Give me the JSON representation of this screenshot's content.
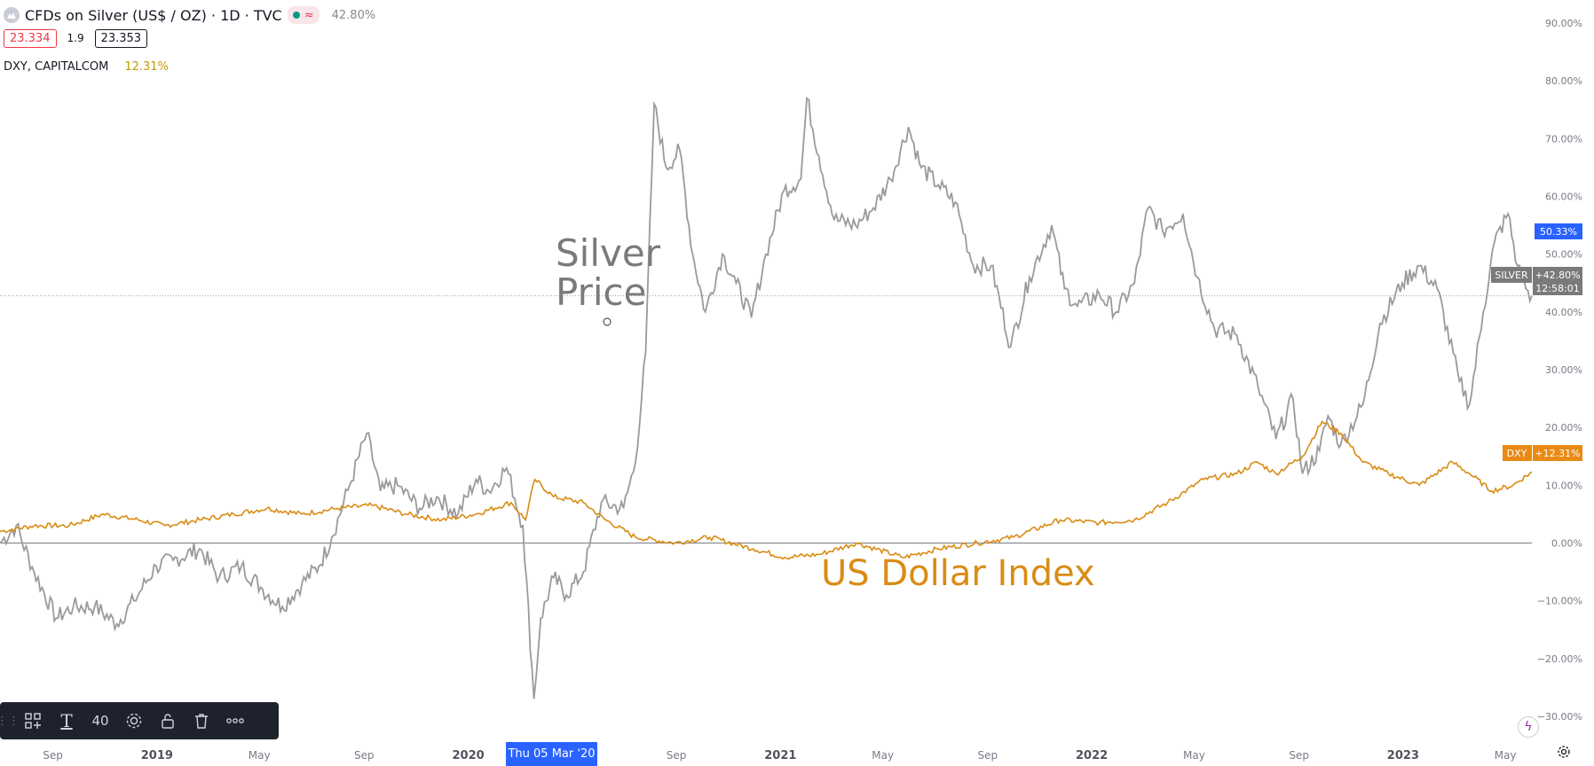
{
  "legend": {
    "symbol_title": "CFDs on Silver (US$ / OZ) · 1D · TVC",
    "status_icon": "wave-icon",
    "status_glyph": "≈",
    "change": "42.80%",
    "bid": "23.334",
    "spread": "1.9",
    "ask": "23.353",
    "compare_symbol": "DXY, CAPITALCOM",
    "compare_change": "12.31%"
  },
  "colors": {
    "silver": "#9a9a9a",
    "dxy": "#d98c14",
    "annot_silver": "#7a7a7a",
    "annot_dxy": "#d98c14",
    "badge_blue": "#2962ff",
    "badge_gray": "#7a7a7a",
    "badge_orange": "#e98a14"
  },
  "annotations": {
    "silver_line1": "Silver",
    "silver_line2": "Price",
    "dxy": "US Dollar Index"
  },
  "toolbar": {
    "font_size": "40"
  },
  "crosshair_date": "Thu 05 Mar '20",
  "badges": {
    "blue": "50.33%",
    "silver_name": "SILVER",
    "silver_value": "+42.80%",
    "silver_countdown": "12:58:01",
    "dxy_name": "DXY",
    "dxy_value": "+12.31%"
  },
  "chart_data": {
    "type": "line",
    "y_axis": {
      "unit": "percent",
      "ticks": [
        90,
        80,
        70,
        60,
        50,
        40,
        30,
        20,
        10,
        0,
        -10,
        -20,
        -30
      ],
      "tick_labels": [
        "90.00%",
        "80.00%",
        "70.00%",
        "60.00%",
        "50.00%",
        "40.00%",
        "30.00%",
        "20.00%",
        "10.00%",
        "0.00%",
        "−10.00%",
        "−20.00%",
        "−30.00%"
      ],
      "range": [
        -34,
        94
      ]
    },
    "x_axis": {
      "range": [
        "2018-07-01",
        "2023-06-01"
      ],
      "ticks": [
        {
          "date": "2018-09-01",
          "label": "Sep"
        },
        {
          "date": "2019-01-01",
          "label": "2019"
        },
        {
          "date": "2019-05-01",
          "label": "May"
        },
        {
          "date": "2019-09-01",
          "label": "Sep"
        },
        {
          "date": "2020-01-01",
          "label": "2020"
        },
        {
          "date": "2020-05-01",
          "label": "May"
        },
        {
          "date": "2020-09-01",
          "label": "Sep"
        },
        {
          "date": "2021-01-01",
          "label": "2021"
        },
        {
          "date": "2021-05-01",
          "label": "May"
        },
        {
          "date": "2021-09-01",
          "label": "Sep"
        },
        {
          "date": "2022-01-01",
          "label": "2022"
        },
        {
          "date": "2022-05-01",
          "label": "May"
        },
        {
          "date": "2022-09-01",
          "label": "Sep"
        },
        {
          "date": "2023-01-01",
          "label": "2023"
        },
        {
          "date": "2023-05-01",
          "label": "May"
        }
      ]
    },
    "series": [
      {
        "name": "SILVER",
        "points": [
          [
            "2018-07-01",
            0
          ],
          [
            "2018-07-20",
            3
          ],
          [
            "2018-08-10",
            -5
          ],
          [
            "2018-09-05",
            -13
          ],
          [
            "2018-09-25",
            -11
          ],
          [
            "2018-10-20",
            -11
          ],
          [
            "2018-11-15",
            -14
          ],
          [
            "2018-12-05",
            -10
          ],
          [
            "2018-12-31",
            -4
          ],
          [
            "2019-01-20",
            -3
          ],
          [
            "2019-02-20",
            -1
          ],
          [
            "2019-03-15",
            -6
          ],
          [
            "2019-04-10",
            -4
          ],
          [
            "2019-05-05",
            -8
          ],
          [
            "2019-05-28",
            -11
          ],
          [
            "2019-06-20",
            -7
          ],
          [
            "2019-07-10",
            -4
          ],
          [
            "2019-07-25",
            1
          ],
          [
            "2019-08-15",
            10
          ],
          [
            "2019-09-04",
            19
          ],
          [
            "2019-09-20",
            9
          ],
          [
            "2019-10-10",
            10
          ],
          [
            "2019-11-05",
            6
          ],
          [
            "2019-11-25",
            8
          ],
          [
            "2019-12-20",
            5
          ],
          [
            "2020-01-10",
            11
          ],
          [
            "2020-01-25",
            9
          ],
          [
            "2020-02-15",
            13
          ],
          [
            "2020-03-05",
            3
          ],
          [
            "2020-03-18",
            -27
          ],
          [
            "2020-03-26",
            -13
          ],
          [
            "2020-04-10",
            -6
          ],
          [
            "2020-04-25",
            -9
          ],
          [
            "2020-05-15",
            -5
          ],
          [
            "2020-06-05",
            7
          ],
          [
            "2020-07-01",
            6
          ],
          [
            "2020-07-15",
            14
          ],
          [
            "2020-07-27",
            33
          ],
          [
            "2020-08-06",
            76
          ],
          [
            "2020-08-20",
            65
          ],
          [
            "2020-09-05",
            68
          ],
          [
            "2020-09-20",
            50
          ],
          [
            "2020-10-05",
            40
          ],
          [
            "2020-10-25",
            50
          ],
          [
            "2020-11-10",
            45
          ],
          [
            "2020-11-28",
            39
          ],
          [
            "2020-12-15",
            50
          ],
          [
            "2021-01-05",
            61
          ],
          [
            "2021-01-25",
            63
          ],
          [
            "2021-02-01",
            77
          ],
          [
            "2021-02-15",
            67
          ],
          [
            "2021-03-05",
            56
          ],
          [
            "2021-03-30",
            55
          ],
          [
            "2021-04-20",
            58
          ],
          [
            "2021-05-10",
            63
          ],
          [
            "2021-05-31",
            72
          ],
          [
            "2021-06-15",
            65
          ],
          [
            "2021-07-05",
            62
          ],
          [
            "2021-07-25",
            59
          ],
          [
            "2021-08-15",
            48
          ],
          [
            "2021-09-05",
            48
          ],
          [
            "2021-09-28",
            34
          ],
          [
            "2021-10-20",
            46
          ],
          [
            "2021-11-15",
            55
          ],
          [
            "2021-11-30",
            44
          ],
          [
            "2021-12-15",
            41
          ],
          [
            "2022-01-10",
            43
          ],
          [
            "2022-01-30",
            40
          ],
          [
            "2022-02-20",
            45
          ],
          [
            "2022-03-08",
            58
          ],
          [
            "2022-03-25",
            54
          ],
          [
            "2022-04-18",
            57
          ],
          [
            "2022-05-05",
            46
          ],
          [
            "2022-05-25",
            37
          ],
          [
            "2022-06-20",
            36
          ],
          [
            "2022-07-15",
            27
          ],
          [
            "2022-08-05",
            18
          ],
          [
            "2022-08-25",
            25
          ],
          [
            "2022-09-05",
            12
          ],
          [
            "2022-09-25",
            16
          ],
          [
            "2022-10-05",
            22
          ],
          [
            "2022-10-20",
            17
          ],
          [
            "2022-11-15",
            24
          ],
          [
            "2022-12-05",
            38
          ],
          [
            "2022-12-31",
            45
          ],
          [
            "2023-01-20",
            48
          ],
          [
            "2023-02-10",
            44
          ],
          [
            "2023-03-08",
            28
          ],
          [
            "2023-03-20",
            24
          ],
          [
            "2023-04-05",
            40
          ],
          [
            "2023-04-18",
            52
          ],
          [
            "2023-05-04",
            57
          ],
          [
            "2023-05-15",
            48
          ],
          [
            "2023-05-25",
            44
          ],
          [
            "2023-06-01",
            42.8
          ]
        ]
      },
      {
        "name": "DXY",
        "points": [
          [
            "2018-07-01",
            2
          ],
          [
            "2018-08-10",
            3
          ],
          [
            "2018-09-20",
            3
          ],
          [
            "2018-10-30",
            5
          ],
          [
            "2018-12-10",
            4
          ],
          [
            "2019-01-10",
            3
          ],
          [
            "2019-02-20",
            4
          ],
          [
            "2019-04-01",
            5
          ],
          [
            "2019-05-10",
            6
          ],
          [
            "2019-06-20",
            5
          ],
          [
            "2019-08-01",
            6
          ],
          [
            "2019-09-10",
            6.5
          ],
          [
            "2019-10-20",
            5
          ],
          [
            "2019-12-01",
            4
          ],
          [
            "2020-01-10",
            5
          ],
          [
            "2020-02-20",
            7
          ],
          [
            "2020-03-08",
            4
          ],
          [
            "2020-03-19",
            11
          ],
          [
            "2020-04-10",
            8
          ],
          [
            "2020-05-15",
            7
          ],
          [
            "2020-06-10",
            4
          ],
          [
            "2020-07-15",
            1
          ],
          [
            "2020-08-30",
            0
          ],
          [
            "2020-10-10",
            1
          ],
          [
            "2020-11-30",
            -1
          ],
          [
            "2021-01-06",
            -2.5
          ],
          [
            "2021-02-15",
            -2
          ],
          [
            "2021-03-31",
            0
          ],
          [
            "2021-05-25",
            -2.5
          ],
          [
            "2021-07-05",
            -1
          ],
          [
            "2021-08-20",
            0
          ],
          [
            "2021-10-01",
            1
          ],
          [
            "2021-11-25",
            4
          ],
          [
            "2022-01-10",
            3.5
          ],
          [
            "2022-02-20",
            4
          ],
          [
            "2022-03-31",
            7
          ],
          [
            "2022-05-12",
            11
          ],
          [
            "2022-06-20",
            12
          ],
          [
            "2022-07-14",
            14
          ],
          [
            "2022-08-05",
            12
          ],
          [
            "2022-09-05",
            15
          ],
          [
            "2022-09-28",
            21
          ],
          [
            "2022-10-20",
            19
          ],
          [
            "2022-11-15",
            14
          ],
          [
            "2022-12-15",
            12
          ],
          [
            "2023-01-20",
            10
          ],
          [
            "2023-02-28",
            14
          ],
          [
            "2023-03-20",
            12
          ],
          [
            "2023-04-15",
            9
          ],
          [
            "2023-05-10",
            10
          ],
          [
            "2023-06-01",
            12.31
          ]
        ]
      }
    ]
  }
}
